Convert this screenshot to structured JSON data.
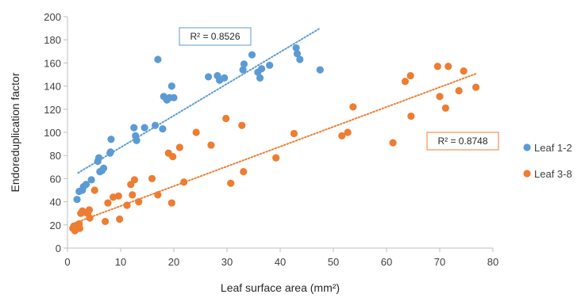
{
  "chart_data": {
    "type": "scatter",
    "xlabel": "Leaf surface area (mm²)",
    "ylabel": "Endoreduplication factor",
    "xlim": [
      0,
      80
    ],
    "ylim": [
      0,
      200
    ],
    "x_ticks": [
      "0",
      "10",
      "20",
      "30",
      "40",
      "50",
      "60",
      "70",
      "80"
    ],
    "y_ticks": [
      "0",
      "20",
      "40",
      "60",
      "80",
      "100",
      "120",
      "140",
      "160",
      "180",
      "200"
    ],
    "grid": false,
    "legend_position": "right",
    "series": [
      {
        "name": "Leaf 1-2",
        "color": "#5B9BD5",
        "r2_label": "R² = 0.8526",
        "trendline": {
          "x": [
            2,
            47.5
          ],
          "y": [
            65,
            190
          ]
        },
        "points": [
          [
            1.8,
            42
          ],
          [
            2.2,
            49
          ],
          [
            2.8,
            50
          ],
          [
            3.0,
            53
          ],
          [
            3.5,
            55
          ],
          [
            4.5,
            59
          ],
          [
            5.7,
            75
          ],
          [
            5.9,
            78
          ],
          [
            6.1,
            66
          ],
          [
            6.5,
            67
          ],
          [
            6.8,
            69
          ],
          [
            8.0,
            82
          ],
          [
            8.1,
            83
          ],
          [
            8.2,
            94
          ],
          [
            12.5,
            104
          ],
          [
            12.8,
            97
          ],
          [
            13.0,
            93
          ],
          [
            14.5,
            104
          ],
          [
            16.5,
            106
          ],
          [
            17.0,
            163
          ],
          [
            17.9,
            103
          ],
          [
            18.1,
            131
          ],
          [
            18.7,
            128
          ],
          [
            19.2,
            130
          ],
          [
            19.6,
            140
          ],
          [
            20.0,
            130
          ],
          [
            26.5,
            148
          ],
          [
            28.2,
            149
          ],
          [
            28.6,
            145
          ],
          [
            29.5,
            147
          ],
          [
            33.0,
            154
          ],
          [
            33.2,
            159
          ],
          [
            34.7,
            167
          ],
          [
            35.8,
            152
          ],
          [
            36.2,
            147
          ],
          [
            36.5,
            155
          ],
          [
            38.0,
            158
          ],
          [
            43.0,
            173
          ],
          [
            43.2,
            168
          ],
          [
            43.7,
            163
          ],
          [
            47.5,
            154
          ]
        ]
      },
      {
        "name": "Leaf 3-8",
        "color": "#ED7D31",
        "r2_label": "R² = 0.8748",
        "trendline": {
          "x": [
            1,
            77
          ],
          "y": [
            21,
            151
          ]
        },
        "points": [
          [
            1.0,
            17
          ],
          [
            1.2,
            19
          ],
          [
            1.4,
            15
          ],
          [
            1.6,
            18
          ],
          [
            1.8,
            20
          ],
          [
            2.0,
            18
          ],
          [
            2.2,
            21
          ],
          [
            2.3,
            17
          ],
          [
            2.5,
            30
          ],
          [
            2.8,
            32
          ],
          [
            3.2,
            31
          ],
          [
            3.8,
            30
          ],
          [
            4.1,
            33
          ],
          [
            4.2,
            26
          ],
          [
            5.1,
            50
          ],
          [
            7.1,
            23
          ],
          [
            7.6,
            39
          ],
          [
            8.6,
            44
          ],
          [
            9.6,
            45
          ],
          [
            9.8,
            25
          ],
          [
            11.2,
            37
          ],
          [
            11.9,
            55
          ],
          [
            12.2,
            46
          ],
          [
            12.6,
            59
          ],
          [
            13.4,
            40
          ],
          [
            15.9,
            60
          ],
          [
            17.0,
            46
          ],
          [
            19.0,
            82
          ],
          [
            19.8,
            79
          ],
          [
            19.6,
            39
          ],
          [
            21.1,
            87
          ],
          [
            21.9,
            57
          ],
          [
            24.2,
            100
          ],
          [
            27.0,
            89
          ],
          [
            29.8,
            112
          ],
          [
            30.7,
            56
          ],
          [
            32.8,
            106
          ],
          [
            33.1,
            66
          ],
          [
            39.2,
            78
          ],
          [
            42.6,
            99
          ],
          [
            51.6,
            97
          ],
          [
            52.7,
            100
          ],
          [
            53.7,
            122
          ],
          [
            61.2,
            91
          ],
          [
            63.5,
            144
          ],
          [
            64.5,
            149
          ],
          [
            64.6,
            114
          ],
          [
            69.6,
            157
          ],
          [
            70.0,
            131
          ],
          [
            71.1,
            121
          ],
          [
            71.6,
            157
          ],
          [
            73.6,
            136
          ],
          [
            74.5,
            153
          ],
          [
            76.8,
            139
          ]
        ]
      }
    ]
  }
}
